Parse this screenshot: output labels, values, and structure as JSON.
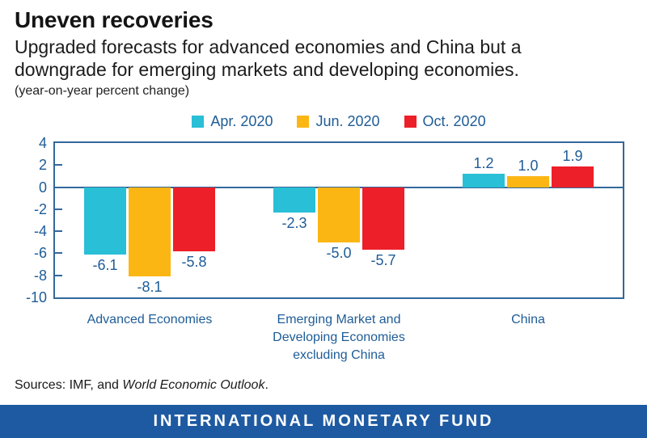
{
  "header": {
    "title": "Uneven recoveries",
    "subtitle_lines": [
      "Upgraded forecasts for advanced economies and China but a",
      "downgrade for emerging markets and developing economies."
    ],
    "unit_note": "(year-on-year percent change)"
  },
  "legend": [
    {
      "label": "Apr. 2020",
      "color": "#29bfd6"
    },
    {
      "label": "Jun. 2020",
      "color": "#fcb614"
    },
    {
      "label": "Oct. 2020",
      "color": "#ed1f28"
    }
  ],
  "chart_data": {
    "type": "bar",
    "title": "Uneven recoveries",
    "ylabel": "(year-on-year percent change)",
    "categories": [
      "Advanced Economies",
      "Emerging Market and\nDeveloping Economies\nexcluding China",
      "China"
    ],
    "series": [
      {
        "name": "Apr. 2020",
        "color": "#29bfd6",
        "values": [
          -6.1,
          -2.3,
          1.2
        ]
      },
      {
        "name": "Jun. 2020",
        "color": "#fcb614",
        "values": [
          -8.1,
          -5.0,
          1.0
        ]
      },
      {
        "name": "Oct. 2020",
        "color": "#ed1f28",
        "values": [
          -5.8,
          -5.7,
          1.9
        ]
      }
    ],
    "ylim": [
      -10,
      4
    ],
    "yticks": [
      4,
      2,
      0,
      -2,
      -4,
      -6,
      -8,
      -10
    ],
    "grid": false,
    "legend_position": "top"
  },
  "footer": {
    "sources_prefix": "Sources: IMF, and ",
    "sources_italic": "World Economic Outlook",
    "sources_suffix": ".",
    "banner": "INTERNATIONAL MONETARY FUND"
  },
  "colors": {
    "series_apr": "#29bfd6",
    "series_jun": "#fcb614",
    "series_oct": "#ed1f28",
    "chart_text_blue": "#1e5c97",
    "axis_line_blue": "#33689b",
    "banner_blue": "#1e5aa2",
    "title_black": "#141414"
  }
}
